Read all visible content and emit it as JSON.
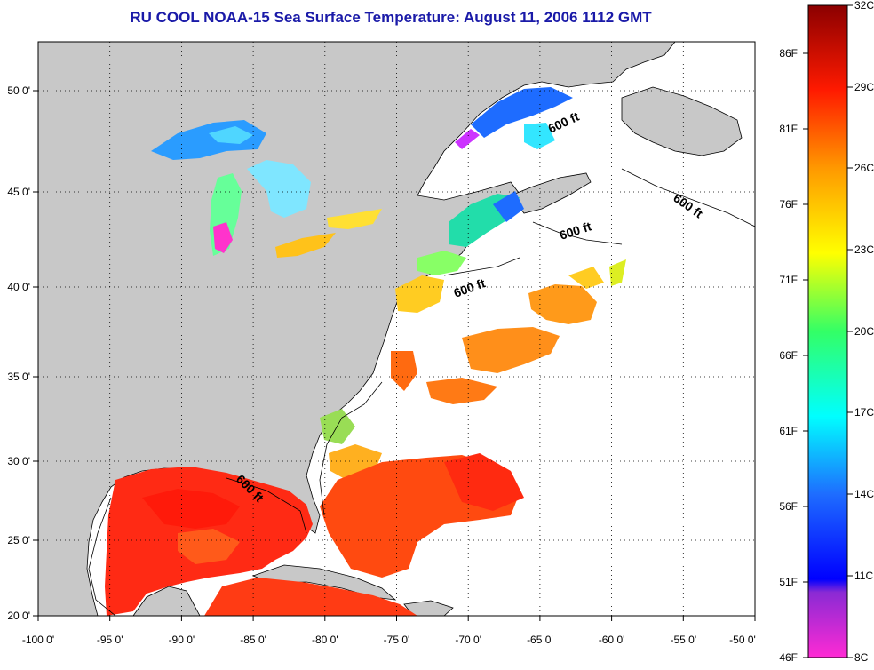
{
  "title": "RU COOL  NOAA-15  Sea Surface Temperature:  August 11, 2006 1112 GMT",
  "axes": {
    "x_ticks": [
      "-100 0'",
      "-95 0'",
      "-90 0'",
      "-85 0'",
      "-80 0'",
      "-75 0'",
      "-70 0'",
      "-65 0'",
      "-60 0'",
      "-55 0'",
      "-50 0'"
    ],
    "y_ticks": [
      "50 0'",
      "45 0'",
      "40 0'",
      "35 0'",
      "30 0'",
      "25 0'",
      "20 0'"
    ],
    "x_range": [
      -100,
      -50
    ],
    "y_range": [
      20,
      52.5
    ],
    "grid": "dotted"
  },
  "depth_labels": [
    "600 ft",
    "600 ft",
    "600 ft",
    "600 ft",
    "600 ft"
  ],
  "colorbar": {
    "fahrenheit": [
      "86F",
      "81F",
      "76F",
      "71F",
      "66F",
      "61F",
      "56F",
      "51F",
      "46F"
    ],
    "celsius": [
      "32C",
      "29C",
      "26C",
      "23C",
      "20C",
      "17C",
      "14C",
      "11C",
      "8C"
    ]
  },
  "colors": {
    "land": "#c8c8c8",
    "no_data": "#ffffff",
    "title": "#1a1aa8"
  }
}
